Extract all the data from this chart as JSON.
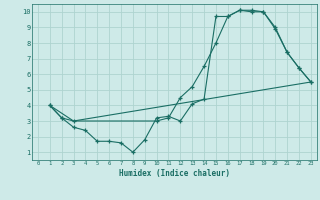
{
  "xlabel": "Humidex (Indice chaleur)",
  "background_color": "#ceeae8",
  "grid_color": "#aed4d0",
  "line_color": "#1a6e64",
  "xlim": [
    -0.5,
    23.5
  ],
  "ylim": [
    0.5,
    10.5
  ],
  "xticks": [
    0,
    1,
    2,
    3,
    4,
    5,
    6,
    7,
    8,
    9,
    10,
    11,
    12,
    13,
    14,
    15,
    16,
    17,
    18,
    19,
    20,
    21,
    22,
    23
  ],
  "yticks": [
    1,
    2,
    3,
    4,
    5,
    6,
    7,
    8,
    9,
    10
  ],
  "line1_x": [
    1,
    2,
    3,
    4,
    5,
    6,
    7,
    8,
    9,
    10,
    11,
    12,
    13,
    14,
    15,
    16,
    17,
    18,
    19,
    20,
    21,
    22,
    23
  ],
  "line1_y": [
    4.0,
    3.2,
    2.6,
    2.4,
    1.7,
    1.7,
    1.6,
    1.0,
    1.8,
    3.2,
    3.3,
    3.0,
    4.1,
    4.4,
    9.7,
    9.7,
    10.1,
    10.1,
    10.0,
    8.9,
    7.4,
    6.4,
    5.5
  ],
  "line2_x": [
    1,
    2,
    3,
    10,
    11,
    12,
    13,
    14,
    15,
    16,
    17,
    18,
    19,
    20,
    21,
    22,
    23
  ],
  "line2_y": [
    4.0,
    3.2,
    3.0,
    3.0,
    3.2,
    4.5,
    5.2,
    6.5,
    8.0,
    9.7,
    10.1,
    10.0,
    10.0,
    9.0,
    7.4,
    6.4,
    5.5
  ],
  "line3_x": [
    1,
    3,
    23
  ],
  "line3_y": [
    4.0,
    3.0,
    5.5
  ]
}
